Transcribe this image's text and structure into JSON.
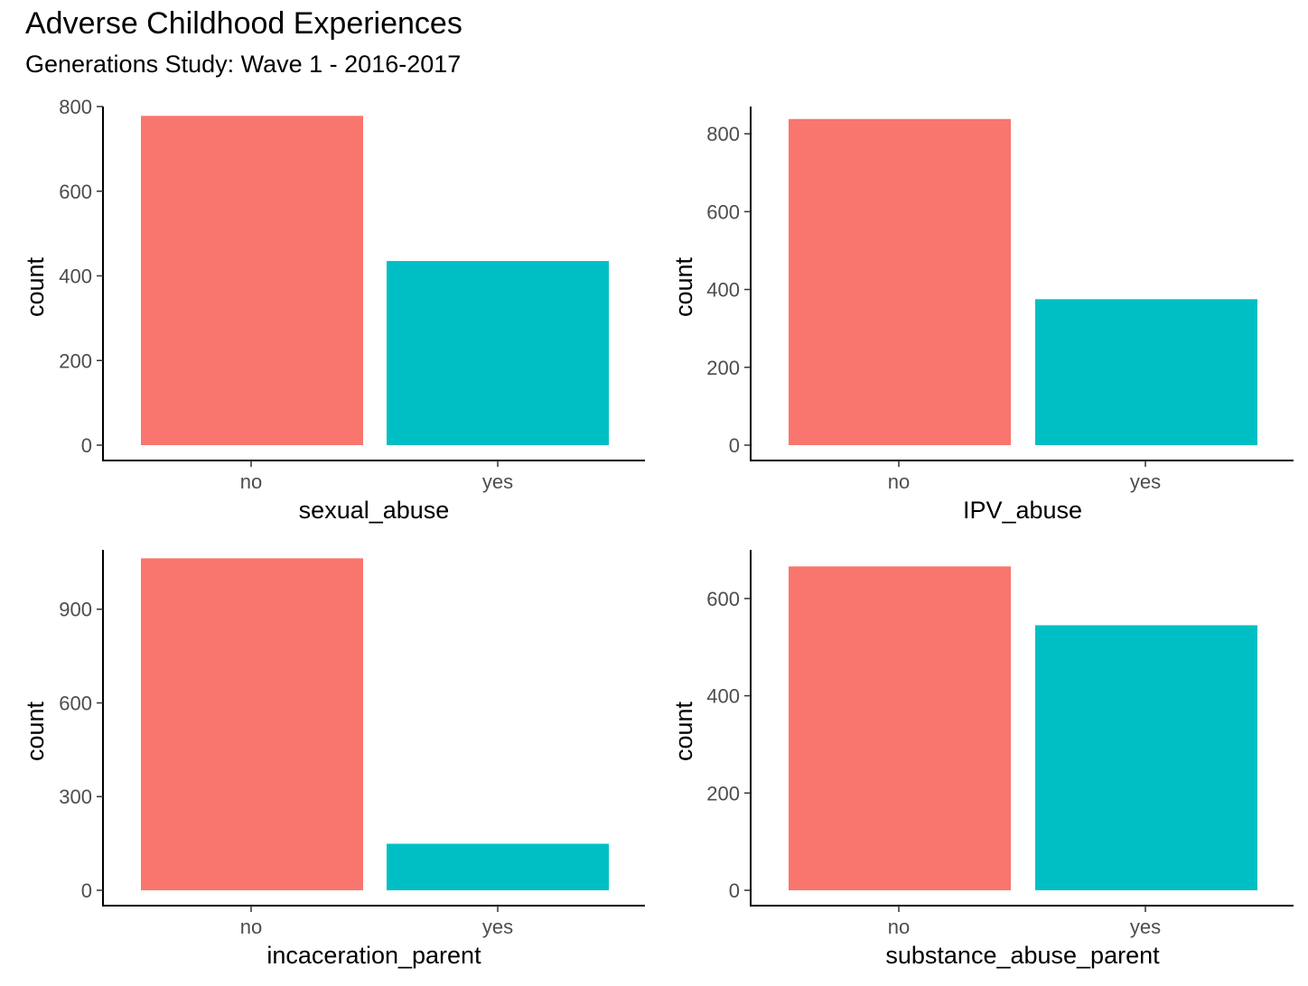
{
  "title": "Adverse Childhood Experiences",
  "subtitle": "Generations Study: Wave 1 - 2016-2017",
  "colors": {
    "no": "#F8766D",
    "yes": "#00BFC4"
  },
  "chart_data": [
    {
      "type": "bar",
      "xlabel": "sexual_abuse",
      "ylabel": "count",
      "categories": [
        "no",
        "yes"
      ],
      "values": [
        778,
        435
      ],
      "ylim": [
        0,
        800
      ],
      "yticks": [
        0,
        200,
        400,
        600,
        800
      ],
      "grid": false
    },
    {
      "type": "bar",
      "xlabel": "IPV_abuse",
      "ylabel": "count",
      "categories": [
        "no",
        "yes"
      ],
      "values": [
        838,
        375
      ],
      "ylim": [
        0,
        870
      ],
      "yticks": [
        0,
        200,
        400,
        600,
        800
      ],
      "grid": false
    },
    {
      "type": "bar",
      "xlabel": "incaceration_parent",
      "ylabel": "count",
      "categories": [
        "no",
        "yes"
      ],
      "values": [
        1063,
        149
      ],
      "ylim": [
        0,
        1090
      ],
      "yticks": [
        0,
        300,
        600,
        900
      ],
      "grid": false
    },
    {
      "type": "bar",
      "xlabel": "substance_abuse_parent",
      "ylabel": "count",
      "categories": [
        "no",
        "yes"
      ],
      "values": [
        666,
        545
      ],
      "ylim": [
        0,
        700
      ],
      "yticks": [
        0,
        200,
        400,
        600
      ],
      "grid": false
    }
  ]
}
